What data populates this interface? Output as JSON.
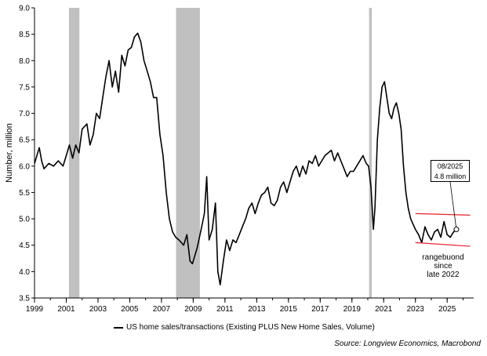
{
  "chart_data": {
    "type": "line",
    "ylabel": "Number, million",
    "xlabel": "",
    "ylim": [
      3.5,
      9.0
    ],
    "xlim": [
      1999.0,
      2026.67
    ],
    "yticks": [
      3.5,
      4.0,
      4.5,
      5.0,
      5.5,
      6.0,
      6.5,
      7.0,
      7.5,
      8.0,
      8.5,
      9.0
    ],
    "ytick_labels": [
      "3.5",
      "4.0",
      "4.5",
      "5.0",
      "5.5",
      "6.0",
      "6.5",
      "7.0",
      "7.5",
      "8.0",
      "8.5",
      "9.0"
    ],
    "xticks": [
      1999,
      2001,
      2003,
      2005,
      2007,
      2009,
      2011,
      2013,
      2015,
      2017,
      2019,
      2021,
      2023,
      2025
    ],
    "xtick_labels": [
      "1999",
      "2001",
      "2003",
      "2005",
      "2007",
      "2009",
      "2011",
      "2013",
      "2015",
      "2017",
      "2019",
      "2021",
      "2023",
      "2025"
    ],
    "recession_shading": [
      [
        2001.17,
        2001.83
      ],
      [
        2007.92,
        2009.42
      ],
      [
        2020.08,
        2020.25
      ]
    ],
    "series": [
      {
        "name": "US home sales/transactions (Existing PLUS New Home Sales, Volume)",
        "color": "#000000",
        "x": [
          1999.0,
          1999.3,
          1999.45,
          1999.6,
          1999.9,
          2000.2,
          2000.5,
          2000.8,
          2001.0,
          2001.2,
          2001.4,
          2001.6,
          2001.8,
          2002.0,
          2002.3,
          2002.5,
          2002.7,
          2002.9,
          2003.1,
          2003.3,
          2003.5,
          2003.7,
          2003.9,
          2004.1,
          2004.3,
          2004.5,
          2004.7,
          2004.9,
          2005.1,
          2005.3,
          2005.5,
          2005.7,
          2005.9,
          2006.1,
          2006.3,
          2006.5,
          2006.7,
          2006.9,
          2007.1,
          2007.3,
          2007.5,
          2007.7,
          2007.9,
          2008.1,
          2008.4,
          2008.6,
          2008.8,
          2008.95,
          2009.1,
          2009.25,
          2009.5,
          2009.7,
          2009.85,
          2010.0,
          2010.2,
          2010.4,
          2010.55,
          2010.7,
          2010.9,
          2011.1,
          2011.3,
          2011.5,
          2011.7,
          2011.9,
          2012.1,
          2012.3,
          2012.5,
          2012.7,
          2012.9,
          2013.1,
          2013.3,
          2013.5,
          2013.7,
          2013.9,
          2014.1,
          2014.3,
          2014.5,
          2014.7,
          2014.9,
          2015.1,
          2015.3,
          2015.5,
          2015.7,
          2015.9,
          2016.1,
          2016.3,
          2016.5,
          2016.7,
          2016.9,
          2017.1,
          2017.3,
          2017.5,
          2017.7,
          2017.9,
          2018.1,
          2018.3,
          2018.5,
          2018.7,
          2018.9,
          2019.1,
          2019.3,
          2019.5,
          2019.7,
          2019.9,
          2020.05,
          2020.2,
          2020.35,
          2020.45,
          2020.6,
          2020.75,
          2020.9,
          2021.05,
          2021.2,
          2021.35,
          2021.5,
          2021.65,
          2021.8,
          2021.95,
          2022.1,
          2022.25,
          2022.4,
          2022.55,
          2022.7,
          2022.85,
          2023.0,
          2023.2,
          2023.4,
          2023.6,
          2023.8,
          2024.0,
          2024.2,
          2024.4,
          2024.6,
          2024.8,
          2025.0,
          2025.2,
          2025.4,
          2025.58
        ],
        "values": [
          6.05,
          6.35,
          6.1,
          5.95,
          6.05,
          6.0,
          6.1,
          6.0,
          6.2,
          6.4,
          6.15,
          6.4,
          6.25,
          6.7,
          6.8,
          6.4,
          6.6,
          7.0,
          6.9,
          7.3,
          7.7,
          8.0,
          7.5,
          7.8,
          7.4,
          8.1,
          7.9,
          8.2,
          8.25,
          8.45,
          8.52,
          8.35,
          8.0,
          7.8,
          7.6,
          7.3,
          7.3,
          6.6,
          6.2,
          5.5,
          5.0,
          4.75,
          4.65,
          4.6,
          4.5,
          4.7,
          4.2,
          4.15,
          4.3,
          4.45,
          4.8,
          5.1,
          5.8,
          4.6,
          4.8,
          5.3,
          4.0,
          3.75,
          4.2,
          4.6,
          4.4,
          4.6,
          4.55,
          4.7,
          4.85,
          5.0,
          5.2,
          5.3,
          5.1,
          5.3,
          5.45,
          5.5,
          5.6,
          5.3,
          5.25,
          5.35,
          5.6,
          5.7,
          5.5,
          5.7,
          5.9,
          6.0,
          5.8,
          6.0,
          5.85,
          6.1,
          6.05,
          6.2,
          6.0,
          6.1,
          6.2,
          6.25,
          6.3,
          6.1,
          6.25,
          6.1,
          5.95,
          5.8,
          5.9,
          5.9,
          6.0,
          6.1,
          6.2,
          6.05,
          6.0,
          5.6,
          4.8,
          5.2,
          6.5,
          7.1,
          7.5,
          7.6,
          7.3,
          7.0,
          6.9,
          7.1,
          7.2,
          7.0,
          6.7,
          6.0,
          5.5,
          5.2,
          5.0,
          4.9,
          4.8,
          4.7,
          4.55,
          4.85,
          4.7,
          4.6,
          4.75,
          4.8,
          4.65,
          4.95,
          4.7,
          4.65,
          4.75,
          4.8
        ]
      }
    ],
    "range_lines": {
      "color": "#e8202a",
      "upper": {
        "x": [
          2023.0,
          2026.45
        ],
        "y": [
          5.1,
          5.07
        ]
      },
      "lower": {
        "x": [
          2023.0,
          2026.45
        ],
        "y": [
          4.55,
          4.48
        ]
      }
    },
    "highlight_point": {
      "x": 2025.58,
      "y": 4.8
    },
    "callout_lines": [
      "08/2025",
      "4.8 million"
    ],
    "annotation_lines": [
      "rangebuond",
      "since",
      "late 2022"
    ],
    "legend_label": "US home sales/transactions (Existing PLUS New Home Sales, Volume)",
    "source": "Source: Longview Economics, Macrobond",
    "colors": {
      "line": "#000000",
      "recession": "#c0c0c0",
      "range": "#e8202a"
    }
  }
}
